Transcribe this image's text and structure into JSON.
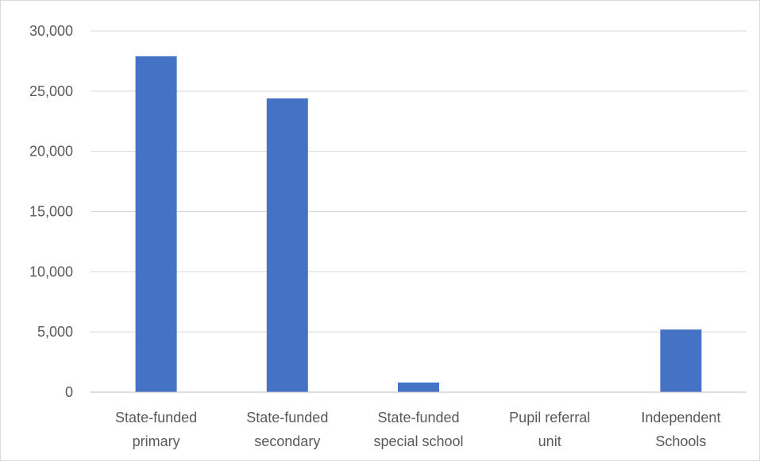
{
  "chart_data": {
    "type": "bar",
    "title": "",
    "xlabel": "",
    "ylabel": "",
    "categories": [
      [
        "State-funded",
        "primary"
      ],
      [
        "State-funded",
        "secondary"
      ],
      [
        "State-funded",
        "special school"
      ],
      [
        "Pupil referral",
        "unit"
      ],
      [
        "Independent",
        "Schools"
      ]
    ],
    "values": [
      27900,
      24400,
      800,
      0,
      5200
    ],
    "ylim": [
      0,
      30000
    ],
    "yticks": [
      0,
      5000,
      10000,
      15000,
      20000,
      25000,
      30000
    ],
    "ytick_labels": [
      "0",
      "5,000",
      "10,000",
      "15,000",
      "20,000",
      "25,000",
      "30,000"
    ],
    "bar_color": "#4472C4",
    "grid": true,
    "grid_color": "#d9d9d9",
    "axis_color": "#bfbfbf",
    "legend": "none"
  }
}
